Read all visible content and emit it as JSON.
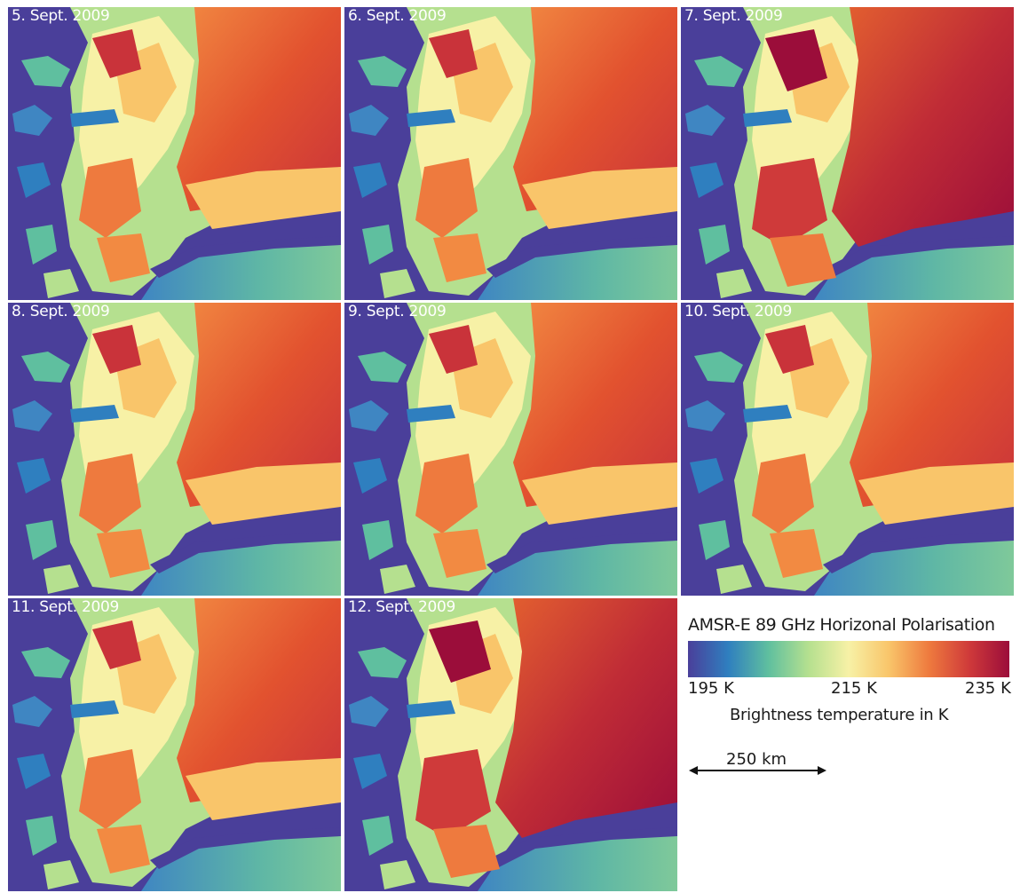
{
  "panels": [
    {
      "label": "5. Sept. 2009"
    },
    {
      "label": "6. Sept. 2009"
    },
    {
      "label": "7. Sept. 2009"
    },
    {
      "label": "8. Sept. 2009"
    },
    {
      "label": "9. Sept. 2009"
    },
    {
      "label": "10. Sept. 2009"
    },
    {
      "label": "11. Sept. 2009"
    },
    {
      "label": "12. Sept. 2009"
    }
  ],
  "legend": {
    "title": "AMSR-E 89 GHz Horizonal Polarisation",
    "tick_min": "195 K",
    "tick_mid": "215 K",
    "tick_max": "235 K",
    "colorbar_label": "Brightness temperature in K",
    "colormap": [
      "#4a3f9a",
      "#2f7fbf",
      "#5fbf9f",
      "#b5e08f",
      "#f7f1a6",
      "#f9c56a",
      "#ee7a3e",
      "#cf3a3a",
      "#9b0d3a"
    ]
  },
  "scale_bar": {
    "label": "250 km"
  }
}
